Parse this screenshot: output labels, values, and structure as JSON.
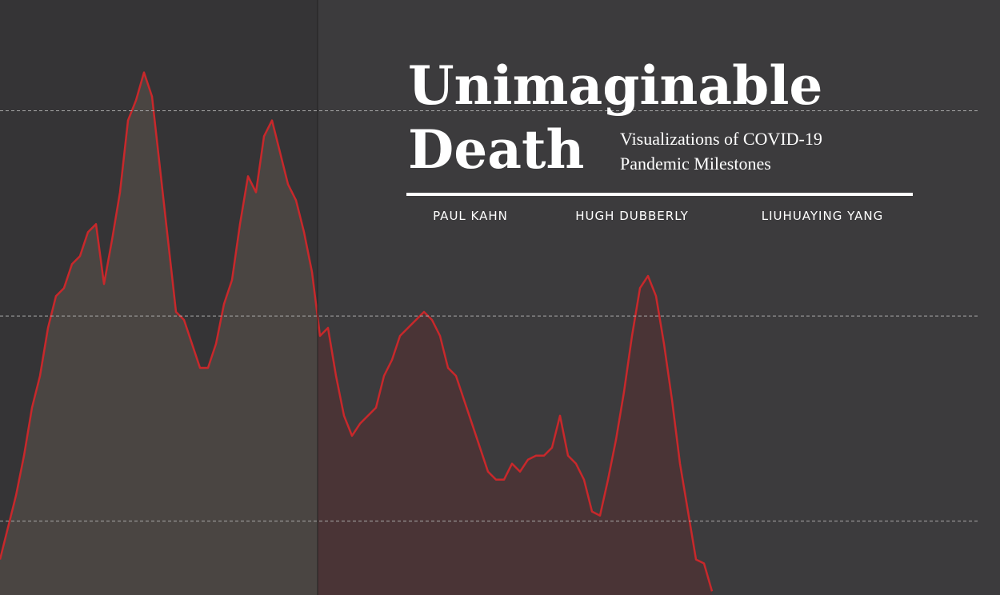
{
  "header": {
    "title_line1": "Unimaginable",
    "title_line2": "Death",
    "subtitle_line1": "Visualizations of COVID-19",
    "subtitle_line2": "Pandemic Milestones",
    "authors": [
      "PAUL KAHN",
      "HUGH DUBBERLY",
      "LIUHUAYING YANG"
    ]
  },
  "chart_data": {
    "type": "area",
    "color": "#c8282b",
    "grid": true,
    "ylim": [
      640,
      3540
    ],
    "yticks": [
      1000,
      2000,
      3000
    ],
    "values": [
      813,
      969,
      1125,
      1319,
      1553,
      1708,
      1942,
      2097,
      2136,
      2253,
      2292,
      2409,
      2448,
      2156,
      2370,
      2603,
      2953,
      3051,
      3187,
      3070,
      2720,
      2370,
      2020,
      1981,
      1864,
      1747,
      1747,
      1864,
      2058,
      2175,
      2448,
      2681,
      2603,
      2876,
      2953,
      2798,
      2642,
      2564,
      2409,
      2214,
      1903,
      1942,
      1708,
      1514,
      1416,
      1475,
      1514,
      1553,
      1708,
      1786,
      1903,
      1942,
      1981,
      2020,
      1981,
      1903,
      1747,
      1708,
      1591,
      1475,
      1358,
      1241,
      1202,
      1202,
      1280,
      1241,
      1300,
      1319,
      1319,
      1358,
      1514,
      1319,
      1280,
      1202,
      1047,
      1027,
      1202,
      1397,
      1630,
      1903,
      2136,
      2195,
      2097,
      1864,
      1591,
      1280,
      1047,
      813,
      794,
      658
    ]
  }
}
